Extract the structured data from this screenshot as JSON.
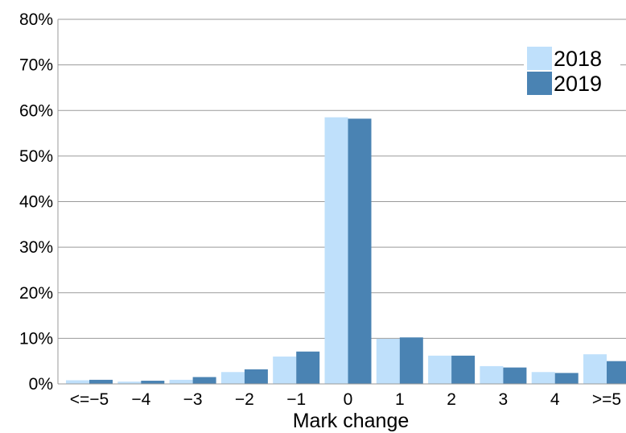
{
  "chart_data": {
    "type": "bar",
    "title": "",
    "xlabel": "Mark change",
    "ylabel": "",
    "categories": [
      "<=−5",
      "−4",
      "−3",
      "−2",
      "−1",
      "0",
      "1",
      "2",
      "3",
      "4",
      ">=5"
    ],
    "series": [
      {
        "name": "2018",
        "color": "#bfe0fb",
        "values": [
          0.8,
          0.5,
          0.9,
          2.6,
          6.0,
          58.5,
          9.9,
          6.2,
          3.9,
          2.6,
          6.5
        ]
      },
      {
        "name": "2019",
        "color": "#4a83b3",
        "values": [
          0.9,
          0.7,
          1.5,
          3.2,
          7.1,
          58.2,
          10.2,
          6.2,
          3.6,
          2.4,
          5.0
        ]
      }
    ],
    "ylim": [
      0,
      80
    ],
    "yticks": [
      "0%",
      "10%",
      "20%",
      "30%",
      "40%",
      "50%",
      "60%",
      "70%",
      "80%"
    ],
    "ytick_values": [
      0,
      10,
      20,
      30,
      40,
      50,
      60,
      70,
      80
    ],
    "grid": true,
    "legend_position": "top-right"
  }
}
